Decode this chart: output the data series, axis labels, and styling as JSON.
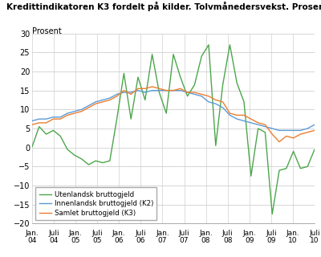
{
  "title": "Kredittindikatoren K3 fordelt på kilder. Tolvmånedersvekst. Prosent",
  "ylabel": "Prosent",
  "ylim": [
    -20,
    30
  ],
  "yticks": [
    -20,
    -15,
    -10,
    -5,
    0,
    5,
    10,
    15,
    20,
    25,
    30
  ],
  "colors": {
    "utenlandsk": "#4ca64c",
    "innenlandsk": "#5b9bd5",
    "samlet": "#ed7d31"
  },
  "legend": [
    "Utenlandsk bruttogjeld",
    "Innenlandsk bruttogjeld (K2)",
    "Samlet bruttogjeld (K3)"
  ],
  "background": "#ffffff",
  "grid_color": "#d0d0d0",
  "xtick_labels_top": [
    "Jan.",
    "Juli",
    "Jan.",
    "Juli",
    "Jan.",
    "Juli",
    "Jan.",
    "Juli",
    "Jan.",
    "Juli",
    "Jan.",
    "Juli",
    "Jan.",
    "Juli"
  ],
  "xtick_labels_bot": [
    "04",
    "04",
    "05",
    "05",
    "06",
    "06",
    "07",
    "07",
    "08",
    "08",
    "09",
    "09",
    "10",
    "10"
  ],
  "utenlandsk": [
    0.2,
    5.5,
    3.5,
    4.5,
    3.0,
    -0.5,
    -2.0,
    -3.0,
    -4.5,
    -3.5,
    -4.0,
    -3.5,
    7.5,
    19.5,
    7.5,
    18.5,
    12.5,
    24.5,
    14.5,
    9.0,
    24.5,
    18.5,
    13.5,
    16.5,
    24.0,
    27.0,
    0.5,
    16.5,
    27.0,
    17.0,
    12.0,
    -7.5,
    5.0,
    4.0,
    -17.5,
    -6.0,
    -5.5,
    -1.0,
    -5.5,
    -5.0,
    -0.5
  ],
  "innenlandsk": [
    7.0,
    7.5,
    7.5,
    8.0,
    8.0,
    9.0,
    9.5,
    10.0,
    11.0,
    12.0,
    12.5,
    13.0,
    14.0,
    14.5,
    14.5,
    15.0,
    14.5,
    15.0,
    15.0,
    15.0,
    15.0,
    15.0,
    14.5,
    14.0,
    13.5,
    12.0,
    11.5,
    10.5,
    8.5,
    7.5,
    7.0,
    6.5,
    6.0,
    5.5,
    5.0,
    4.5,
    4.5,
    4.5,
    4.5,
    5.0,
    6.0
  ],
  "samlet": [
    6.0,
    6.5,
    6.5,
    7.5,
    7.5,
    8.5,
    9.0,
    9.5,
    10.5,
    11.5,
    12.0,
    12.5,
    13.5,
    15.0,
    14.0,
    15.5,
    15.5,
    16.0,
    15.5,
    15.0,
    15.0,
    15.5,
    14.5,
    14.5,
    14.0,
    13.5,
    12.5,
    12.0,
    9.0,
    8.5,
    8.5,
    7.5,
    6.5,
    6.0,
    3.5,
    1.5,
    3.0,
    2.5,
    3.5,
    4.0,
    4.5
  ]
}
